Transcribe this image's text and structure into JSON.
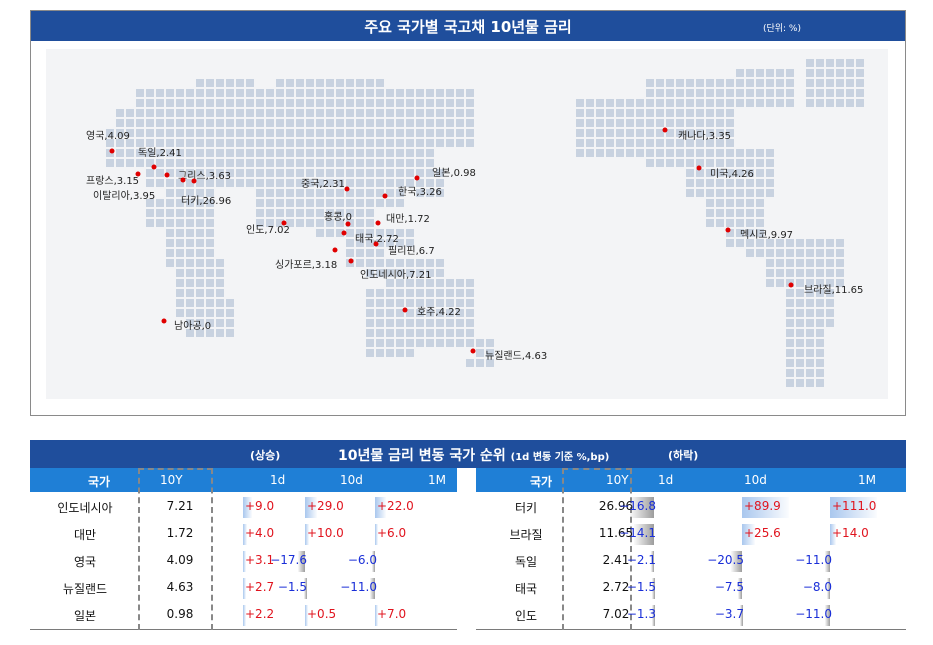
{
  "map": {
    "title": "주요 국가별 국고채 10년물 금리",
    "unit": "(단위: %)"
  },
  "table": {
    "title": "10년물 금리 변동 국가 순위",
    "subtitle": "(1d 변동 기준 %,bp)",
    "up_label": "(상승)",
    "down_label": "(하락)",
    "headers": [
      "국가",
      "10Y",
      "1d",
      "10d",
      "1M"
    ]
  },
  "chart_data": [
    {
      "type": "scatter",
      "title": "주요 국가별 국고채 10년물 금리",
      "unit": "%",
      "points": [
        {
          "label": "영국,4.09"
        },
        {
          "label": "독일,2.41"
        },
        {
          "label": "프랑스,3.15"
        },
        {
          "label": "그리스,3.63"
        },
        {
          "label": "이탈리아,3.95"
        },
        {
          "label": "터키,26.96"
        },
        {
          "label": "중국,2.31"
        },
        {
          "label": "일본,0.98"
        },
        {
          "label": "한국,3.26"
        },
        {
          "label": "홍콩,0"
        },
        {
          "label": "대만,1.72"
        },
        {
          "label": "인도,7.02"
        },
        {
          "label": "태국,2.72"
        },
        {
          "label": "필리핀,6.7"
        },
        {
          "label": "싱가포르,3.18"
        },
        {
          "label": "인도네시아,7.21"
        },
        {
          "label": "호주,4.22"
        },
        {
          "label": "뉴질랜드,4.63"
        },
        {
          "label": "남아공,0"
        },
        {
          "label": "캐나다,3.35"
        },
        {
          "label": "미국,4.26"
        },
        {
          "label": "멕시코,9.97"
        },
        {
          "label": "브라질,11.65"
        }
      ]
    },
    {
      "type": "table",
      "title": "10년물 금리 변동 국가 순위",
      "rising": [
        {
          "country": "인도네시아",
          "y10": "7.21",
          "d1": "+9.0",
          "d10": "+29.0",
          "m1": "+22.0",
          "v1": 9.0,
          "v10": 29.0,
          "vm": 22.0
        },
        {
          "country": "대만",
          "y10": "1.72",
          "d1": "+4.0",
          "d10": "+10.0",
          "m1": "+6.0",
          "v1": 4.0,
          "v10": 10.0,
          "vm": 6.0
        },
        {
          "country": "영국",
          "y10": "4.09",
          "d1": "+3.1",
          "d10": "−17.6",
          "m1": "−6.0",
          "v1": 3.1,
          "v10": -17.6,
          "vm": -6.0
        },
        {
          "country": "뉴질랜드",
          "y10": "4.63",
          "d1": "+2.7",
          "d10": "−1.5",
          "m1": "−11.0",
          "v1": 2.7,
          "v10": -1.5,
          "vm": -11.0
        },
        {
          "country": "일본",
          "y10": "0.98",
          "d1": "+2.2",
          "d10": "+0.5",
          "m1": "+7.0",
          "v1": 2.2,
          "v10": 0.5,
          "vm": 7.0
        }
      ],
      "falling": [
        {
          "country": "터키",
          "y10": "26.96",
          "d1": "−16.8",
          "d10": "+89.9",
          "m1": "+111.0",
          "v1": -16.8,
          "v10": 89.9,
          "vm": 111.0
        },
        {
          "country": "브라질",
          "y10": "11.65",
          "d1": "−14.1",
          "d10": "+25.6",
          "m1": "+14.0",
          "v1": -14.1,
          "v10": 25.6,
          "vm": 14.0
        },
        {
          "country": "독일",
          "y10": "2.41",
          "d1": "−2.1",
          "d10": "−20.5",
          "m1": "−11.0",
          "v1": -2.1,
          "v10": -20.5,
          "vm": -11.0
        },
        {
          "country": "태국",
          "y10": "2.72",
          "d1": "−1.5",
          "d10": "−7.5",
          "m1": "−8.0",
          "v1": -1.5,
          "v10": -7.5,
          "vm": -8.0
        },
        {
          "country": "인도",
          "y10": "7.02",
          "d1": "−1.3",
          "d10": "−3.7",
          "m1": "−11.0",
          "v1": -1.3,
          "v10": -3.7,
          "vm": -11.0
        }
      ]
    }
  ],
  "colors": {
    "header_dark": "#1f4e9c",
    "header_light": "#1f7fd6",
    "positive": "#e0141e",
    "negative": "#1a2fd8",
    "pin": "#e00000",
    "land": "#c8d2e0"
  }
}
